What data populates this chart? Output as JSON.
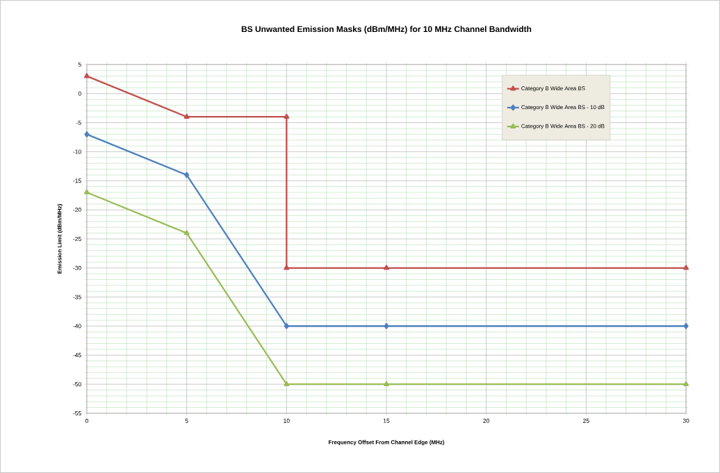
{
  "chart_data": {
    "type": "line",
    "title": "BS Unwanted Emission Masks (dBm/MHz) for 10 MHz Channel Bandwidth",
    "xlabel": "Frequency Offset From Channel Edge (MHz)",
    "ylabel": "Emission Limit (dBm/MHz)",
    "xlim": [
      0,
      30
    ],
    "xticks": [
      0,
      {
        "value": 1,
        "label": null
      },
      {
        "value": 2,
        "label": null
      },
      {
        "value": 3,
        "label": null
      },
      {
        "value": 4,
        "label": null
      },
      5,
      {
        "value": 6,
        "label": null
      },
      {
        "value": 7,
        "label": null
      },
      {
        "value": 8,
        "label": null
      },
      {
        "value": 9,
        "label": null
      },
      10,
      {
        "value": 11,
        "label": null
      },
      {
        "value": 12,
        "label": null
      },
      {
        "value": 13,
        "label": null
      },
      {
        "value": 14,
        "label": null
      },
      15,
      {
        "value": 16,
        "label": null
      },
      {
        "value": 17,
        "label": null
      },
      {
        "value": 18,
        "label": null
      },
      {
        "value": 19,
        "label": null
      },
      20,
      {
        "value": 21,
        "label": null
      },
      {
        "value": 22,
        "label": null
      },
      {
        "value": 23,
        "label": null
      },
      {
        "value": 24,
        "label": null
      },
      25,
      {
        "value": 26,
        "label": null
      },
      {
        "value": 27,
        "label": null
      },
      {
        "value": 28,
        "label": null
      },
      {
        "value": 29,
        "label": null
      },
      30
    ],
    "ylim": [
      -55,
      5
    ],
    "yticks": [
      -55,
      {
        "value": -54,
        "label": null
      },
      {
        "value": -53,
        "label": null
      },
      {
        "value": -52,
        "label": null
      },
      {
        "value": -51,
        "label": null
      },
      -50,
      {
        "value": -49,
        "label": null
      },
      {
        "value": -48,
        "label": null
      },
      {
        "value": -47,
        "label": null
      },
      {
        "value": -46,
        "label": null
      },
      -45,
      {
        "value": -44,
        "label": null
      },
      {
        "value": -43,
        "label": null
      },
      {
        "value": -42,
        "label": null
      },
      {
        "value": -41,
        "label": null
      },
      -40,
      {
        "value": -39,
        "label": null
      },
      {
        "value": -38,
        "label": null
      },
      {
        "value": -37,
        "label": null
      },
      {
        "value": -36,
        "label": null
      },
      -35,
      {
        "value": -34,
        "label": null
      },
      {
        "value": -33,
        "label": null
      },
      {
        "value": -32,
        "label": null
      },
      {
        "value": -31,
        "label": null
      },
      -30,
      {
        "value": -29,
        "label": null
      },
      {
        "value": -28,
        "label": null
      },
      {
        "value": -27,
        "label": null
      },
      {
        "value": -26,
        "label": null
      },
      -25,
      {
        "value": -24,
        "label": null
      },
      {
        "value": -23,
        "label": null
      },
      {
        "value": -22,
        "label": null
      },
      {
        "value": -21,
        "label": null
      },
      -20,
      {
        "value": -19,
        "label": null
      },
      {
        "value": -18,
        "label": null
      },
      {
        "value": -17,
        "label": null
      },
      {
        "value": -16,
        "label": null
      },
      -15,
      {
        "value": -14,
        "label": null
      },
      {
        "value": -13,
        "label": null
      },
      {
        "value": -12,
        "label": null
      },
      {
        "value": -11,
        "label": null
      },
      -10,
      {
        "value": -9,
        "label": null
      },
      {
        "value": -8,
        "label": null
      },
      {
        "value": -7,
        "label": null
      },
      {
        "value": -6,
        "label": null
      },
      -5,
      {
        "value": -4,
        "label": null
      },
      {
        "value": -3,
        "label": null
      },
      {
        "value": -2,
        "label": null
      },
      {
        "value": -1,
        "label": null
      },
      0,
      {
        "value": 1,
        "label": null
      },
      {
        "value": 2,
        "label": null
      },
      {
        "value": 3,
        "label": null
      },
      {
        "value": 4,
        "label": null
      },
      5
    ],
    "grid": true,
    "legend": "top right",
    "line_style": "solid",
    "series": [
      {
        "name": "Category B Wide Area BS",
        "color": "#c0504d",
        "marker": "triangle",
        "x": [
          0,
          5,
          10,
          10,
          15,
          30
        ],
        "values": [
          3,
          -4,
          -4,
          -30,
          -30,
          -30
        ]
      },
      {
        "name": "Category B Wide Area BS - 10 dB",
        "color": "#4f81bd",
        "marker": "diamond",
        "x": [
          0,
          5,
          10,
          15,
          30
        ],
        "values": [
          -7,
          -14,
          -40,
          -40,
          -40
        ]
      },
      {
        "name": "Category B Wide Area BS - 20 dB",
        "color": "#9bbb59",
        "marker": "triangle",
        "x": [
          0,
          5,
          10,
          15,
          30
        ],
        "values": [
          -17,
          -24,
          -50,
          -50,
          -50
        ]
      }
    ]
  }
}
